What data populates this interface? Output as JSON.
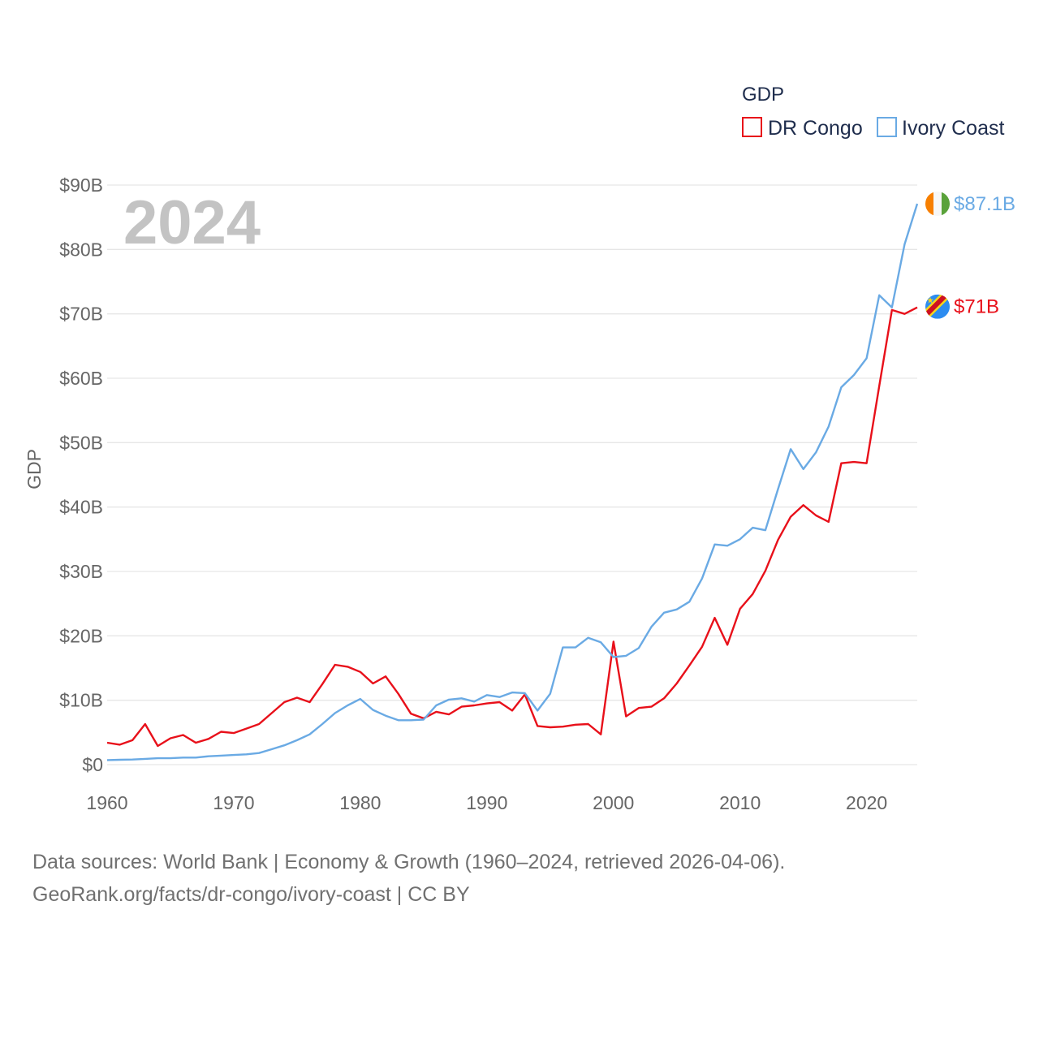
{
  "colors": {
    "dr_congo": "#e8101a",
    "ivory_coast": "#6aaae4",
    "grid": "#e6e6e6",
    "axis_text": "#666666",
    "big_year": "#c3c3c3",
    "legend_text": "#1f2d4d"
  },
  "big_year": "2024",
  "legend": {
    "title": "GDP",
    "items": [
      {
        "key": "dr_congo",
        "label": "DR Congo"
      },
      {
        "key": "ivory_coast",
        "label": "Ivory Coast"
      }
    ]
  },
  "end_labels": {
    "ivory_coast": "$87.1B",
    "dr_congo": "$71B"
  },
  "flags": {
    "ivory_coast": "ivory-coast-flag-icon",
    "dr_congo": "dr-congo-flag-icon"
  },
  "source": {
    "line1": "Data sources: World Bank | Economy & Growth (1960–2024, retrieved 2026-04-06).",
    "line2": "GeoRank.org/facts/dr-congo/ivory-coast | CC BY"
  },
  "chart_data": {
    "type": "line",
    "title": "GDP",
    "xlabel": "",
    "ylabel": "GDP",
    "xlim": [
      1960,
      2024
    ],
    "ylim": [
      0,
      90
    ],
    "unit": "billion USD",
    "x_ticks": [
      1960,
      1970,
      1980,
      1990,
      2000,
      2010,
      2020
    ],
    "x_tick_labels": [
      "1960",
      "1970",
      "1980",
      "1990",
      "2000",
      "2010",
      "2020"
    ],
    "y_ticks": [
      0,
      10,
      20,
      30,
      40,
      50,
      60,
      70,
      80,
      90
    ],
    "y_tick_labels": [
      "$0",
      "$10B",
      "$20B",
      "$30B",
      "$40B",
      "$50B",
      "$60B",
      "$70B",
      "$80B",
      "$90B"
    ],
    "legend_position": "top-right",
    "grid": true,
    "x": [
      1960,
      1961,
      1962,
      1963,
      1964,
      1965,
      1966,
      1967,
      1968,
      1969,
      1970,
      1971,
      1972,
      1973,
      1974,
      1975,
      1976,
      1977,
      1978,
      1979,
      1980,
      1981,
      1982,
      1983,
      1984,
      1985,
      1986,
      1987,
      1988,
      1989,
      1990,
      1991,
      1992,
      1993,
      1994,
      1995,
      1996,
      1997,
      1998,
      1999,
      2000,
      2001,
      2002,
      2003,
      2004,
      2005,
      2006,
      2007,
      2008,
      2009,
      2010,
      2011,
      2012,
      2013,
      2014,
      2015,
      2016,
      2017,
      2018,
      2019,
      2020,
      2021,
      2022,
      2023,
      2024
    ],
    "series": [
      {
        "name": "DR Congo",
        "key": "dr_congo",
        "values": [
          3.4,
          3.1,
          3.8,
          6.3,
          2.9,
          4.1,
          4.6,
          3.4,
          4.0,
          5.1,
          4.9,
          5.6,
          6.3,
          8.0,
          9.7,
          10.4,
          9.7,
          12.5,
          15.5,
          15.2,
          14.4,
          12.6,
          13.7,
          11.0,
          7.9,
          7.2,
          8.2,
          7.8,
          9.0,
          9.2,
          9.5,
          9.7,
          8.4,
          10.9,
          6.0,
          5.8,
          5.9,
          6.2,
          6.3,
          4.7,
          19.1,
          7.5,
          8.8,
          9.0,
          10.3,
          12.6,
          15.4,
          18.3,
          22.8,
          18.6,
          24.2,
          26.5,
          30.1,
          34.9,
          38.5,
          40.3,
          38.7,
          37.7,
          46.8,
          47.0,
          46.8,
          58.8,
          70.6,
          70.0,
          71.0
        ]
      },
      {
        "name": "Ivory Coast",
        "key": "ivory_coast",
        "values": [
          0.7,
          0.75,
          0.8,
          0.9,
          1.0,
          1.0,
          1.1,
          1.1,
          1.3,
          1.4,
          1.5,
          1.6,
          1.8,
          2.4,
          3.0,
          3.8,
          4.7,
          6.3,
          8.0,
          9.2,
          10.2,
          8.5,
          7.6,
          6.9,
          6.9,
          7.0,
          9.2,
          10.1,
          10.3,
          9.8,
          10.8,
          10.5,
          11.2,
          11.1,
          8.4,
          11.0,
          18.2,
          18.2,
          19.7,
          19.0,
          16.7,
          16.9,
          18.1,
          21.4,
          23.6,
          24.1,
          25.3,
          28.9,
          34.2,
          34.0,
          35.0,
          36.8,
          36.4,
          42.8,
          49.0,
          45.9,
          48.5,
          52.5,
          58.6,
          60.5,
          63.1,
          72.9,
          71.0,
          80.8,
          87.1
        ]
      }
    ]
  }
}
